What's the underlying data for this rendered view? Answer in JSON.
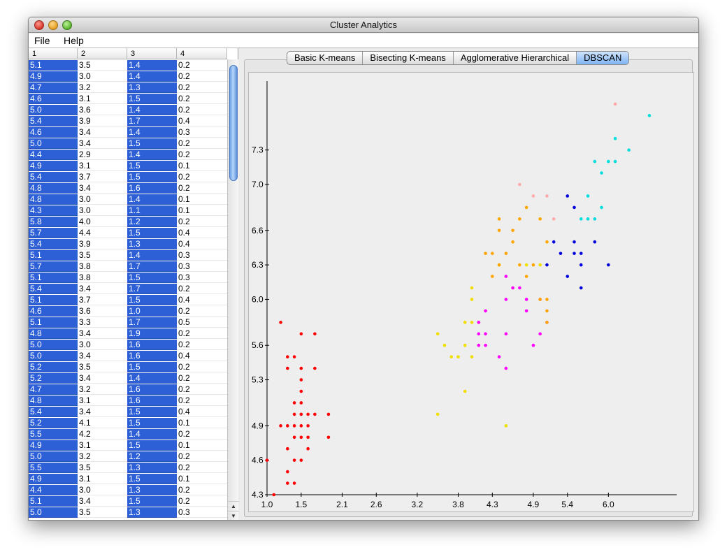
{
  "window": {
    "title": "Cluster Analytics"
  },
  "menu": [
    {
      "label": "File"
    },
    {
      "label": "Help"
    }
  ],
  "table": {
    "columns": [
      "1",
      "2",
      "3",
      "4"
    ],
    "rows": [
      [
        "5.1",
        "3.5",
        "1.4",
        "0.2"
      ],
      [
        "4.9",
        "3.0",
        "1.4",
        "0.2"
      ],
      [
        "4.7",
        "3.2",
        "1.3",
        "0.2"
      ],
      [
        "4.6",
        "3.1",
        "1.5",
        "0.2"
      ],
      [
        "5.0",
        "3.6",
        "1.4",
        "0.2"
      ],
      [
        "5.4",
        "3.9",
        "1.7",
        "0.4"
      ],
      [
        "4.6",
        "3.4",
        "1.4",
        "0.3"
      ],
      [
        "5.0",
        "3.4",
        "1.5",
        "0.2"
      ],
      [
        "4.4",
        "2.9",
        "1.4",
        "0.2"
      ],
      [
        "4.9",
        "3.1",
        "1.5",
        "0.1"
      ],
      [
        "5.4",
        "3.7",
        "1.5",
        "0.2"
      ],
      [
        "4.8",
        "3.4",
        "1.6",
        "0.2"
      ],
      [
        "4.8",
        "3.0",
        "1.4",
        "0.1"
      ],
      [
        "4.3",
        "3.0",
        "1.1",
        "0.1"
      ],
      [
        "5.8",
        "4.0",
        "1.2",
        "0.2"
      ],
      [
        "5.7",
        "4.4",
        "1.5",
        "0.4"
      ],
      [
        "5.4",
        "3.9",
        "1.3",
        "0.4"
      ],
      [
        "5.1",
        "3.5",
        "1.4",
        "0.3"
      ],
      [
        "5.7",
        "3.8",
        "1.7",
        "0.3"
      ],
      [
        "5.1",
        "3.8",
        "1.5",
        "0.3"
      ],
      [
        "5.4",
        "3.4",
        "1.7",
        "0.2"
      ],
      [
        "5.1",
        "3.7",
        "1.5",
        "0.4"
      ],
      [
        "4.6",
        "3.6",
        "1.0",
        "0.2"
      ],
      [
        "5.1",
        "3.3",
        "1.7",
        "0.5"
      ],
      [
        "4.8",
        "3.4",
        "1.9",
        "0.2"
      ],
      [
        "5.0",
        "3.0",
        "1.6",
        "0.2"
      ],
      [
        "5.0",
        "3.4",
        "1.6",
        "0.4"
      ],
      [
        "5.2",
        "3.5",
        "1.5",
        "0.2"
      ],
      [
        "5.2",
        "3.4",
        "1.4",
        "0.2"
      ],
      [
        "4.7",
        "3.2",
        "1.6",
        "0.2"
      ],
      [
        "4.8",
        "3.1",
        "1.6",
        "0.2"
      ],
      [
        "5.4",
        "3.4",
        "1.5",
        "0.4"
      ],
      [
        "5.2",
        "4.1",
        "1.5",
        "0.1"
      ],
      [
        "5.5",
        "4.2",
        "1.4",
        "0.2"
      ],
      [
        "4.9",
        "3.1",
        "1.5",
        "0.1"
      ],
      [
        "5.0",
        "3.2",
        "1.2",
        "0.2"
      ],
      [
        "5.5",
        "3.5",
        "1.3",
        "0.2"
      ],
      [
        "4.9",
        "3.1",
        "1.5",
        "0.1"
      ],
      [
        "4.4",
        "3.0",
        "1.3",
        "0.2"
      ],
      [
        "5.1",
        "3.4",
        "1.5",
        "0.2"
      ],
      [
        "5.0",
        "3.5",
        "1.3",
        "0.3"
      ]
    ],
    "selected_columns": [
      0,
      2
    ]
  },
  "tabs": [
    {
      "label": "Basic K-means",
      "active": false
    },
    {
      "label": "Bisecting K-means",
      "active": false
    },
    {
      "label": "Agglomerative Hierarchical",
      "active": false
    },
    {
      "label": "DBSCAN",
      "active": true
    }
  ],
  "scrollbar": {
    "up_arrow": "▲",
    "down_arrow": "▼"
  },
  "chart_data": {
    "type": "scatter",
    "xlim": [
      1.0,
      7.0
    ],
    "ylim": [
      4.3,
      7.9
    ],
    "x_ticks": [
      "1.0",
      "1.5",
      "2.1",
      "2.6",
      "3.2",
      "3.8",
      "4.3",
      "4.9",
      "5.4",
      "6.0"
    ],
    "y_ticks": [
      "4.3",
      "4.6",
      "4.9",
      "5.3",
      "5.6",
      "6.0",
      "6.3",
      "6.6",
      "7.0",
      "7.3"
    ],
    "grid": false,
    "series": [
      {
        "color": "#ff0000",
        "points": [
          [
            1.0,
            4.6
          ],
          [
            1.1,
            4.3
          ],
          [
            1.2,
            5.8
          ],
          [
            1.2,
            4.9
          ],
          [
            1.3,
            5.5
          ],
          [
            1.3,
            5.4
          ],
          [
            1.3,
            4.9
          ],
          [
            1.3,
            4.7
          ],
          [
            1.3,
            4.5
          ],
          [
            1.3,
            4.4
          ],
          [
            1.4,
            5.5
          ],
          [
            1.4,
            5.1
          ],
          [
            1.4,
            5.0
          ],
          [
            1.4,
            4.9
          ],
          [
            1.4,
            4.8
          ],
          [
            1.4,
            4.6
          ],
          [
            1.4,
            4.4
          ],
          [
            1.5,
            5.7
          ],
          [
            1.5,
            5.4
          ],
          [
            1.5,
            5.3
          ],
          [
            1.5,
            5.2
          ],
          [
            1.5,
            5.1
          ],
          [
            1.5,
            5.0
          ],
          [
            1.5,
            4.9
          ],
          [
            1.5,
            4.8
          ],
          [
            1.5,
            4.6
          ],
          [
            1.6,
            5.0
          ],
          [
            1.6,
            4.9
          ],
          [
            1.6,
            4.8
          ],
          [
            1.6,
            4.7
          ],
          [
            1.7,
            5.7
          ],
          [
            1.7,
            5.4
          ],
          [
            1.7,
            5.0
          ],
          [
            1.9,
            5.0
          ],
          [
            1.9,
            4.8
          ]
        ]
      },
      {
        "color": "#f0e000",
        "points": [
          [
            3.5,
            5.7
          ],
          [
            3.5,
            5.0
          ],
          [
            3.6,
            5.6
          ],
          [
            3.7,
            5.5
          ],
          [
            3.8,
            5.5
          ],
          [
            3.9,
            5.8
          ],
          [
            3.9,
            5.6
          ],
          [
            3.9,
            5.2
          ],
          [
            4.0,
            6.1
          ],
          [
            4.0,
            6.0
          ],
          [
            4.0,
            5.8
          ],
          [
            4.0,
            5.5
          ],
          [
            4.1,
            5.8
          ],
          [
            4.4,
            6.3
          ],
          [
            4.5,
            4.9
          ],
          [
            4.8,
            6.3
          ],
          [
            5.0,
            6.3
          ]
        ]
      },
      {
        "color": "#ff00ff",
        "points": [
          [
            4.1,
            5.8
          ],
          [
            4.1,
            5.7
          ],
          [
            4.1,
            5.6
          ],
          [
            4.2,
            5.9
          ],
          [
            4.2,
            5.7
          ],
          [
            4.2,
            5.6
          ],
          [
            4.4,
            5.5
          ],
          [
            4.5,
            6.2
          ],
          [
            4.5,
            6.0
          ],
          [
            4.5,
            5.7
          ],
          [
            4.5,
            5.4
          ],
          [
            4.6,
            6.1
          ],
          [
            4.7,
            6.1
          ],
          [
            4.8,
            6.0
          ],
          [
            4.8,
            5.9
          ],
          [
            4.9,
            5.6
          ],
          [
            5.0,
            6.0
          ],
          [
            5.0,
            5.7
          ],
          [
            5.1,
            5.8
          ]
        ]
      },
      {
        "color": "#ffa500",
        "points": [
          [
            4.3,
            6.4
          ],
          [
            4.4,
            6.7
          ],
          [
            4.4,
            6.6
          ],
          [
            4.5,
            6.4
          ],
          [
            4.6,
            6.6
          ],
          [
            4.6,
            6.5
          ],
          [
            4.7,
            6.7
          ],
          [
            4.7,
            6.3
          ],
          [
            4.8,
            6.8
          ],
          [
            4.8,
            6.2
          ],
          [
            4.9,
            6.3
          ],
          [
            5.0,
            6.7
          ],
          [
            5.1,
            6.5
          ],
          [
            5.1,
            6.0
          ],
          [
            5.1,
            5.9
          ],
          [
            5.1,
            5.8
          ],
          [
            5.0,
            6.0
          ],
          [
            4.3,
            6.2
          ],
          [
            4.4,
            6.3
          ],
          [
            4.2,
            6.4
          ]
        ]
      },
      {
        "color": "#ffaaaa",
        "points": [
          [
            4.7,
            7.0
          ],
          [
            4.9,
            6.9
          ],
          [
            5.1,
            6.9
          ],
          [
            5.2,
            6.7
          ],
          [
            6.1,
            7.7
          ]
        ]
      },
      {
        "color": "#0000dd",
        "points": [
          [
            5.1,
            6.3
          ],
          [
            5.2,
            6.5
          ],
          [
            5.3,
            6.4
          ],
          [
            5.4,
            6.9
          ],
          [
            5.4,
            6.2
          ],
          [
            5.5,
            6.8
          ],
          [
            5.5,
            6.5
          ],
          [
            5.5,
            6.4
          ],
          [
            5.6,
            6.4
          ],
          [
            5.6,
            6.3
          ],
          [
            5.6,
            6.1
          ],
          [
            5.8,
            6.5
          ],
          [
            6.0,
            6.3
          ]
        ]
      },
      {
        "color": "#00dddd",
        "points": [
          [
            5.6,
            6.7
          ],
          [
            5.7,
            6.9
          ],
          [
            5.7,
            6.7
          ],
          [
            5.8,
            7.2
          ],
          [
            5.8,
            6.7
          ],
          [
            5.9,
            6.8
          ],
          [
            5.9,
            7.1
          ],
          [
            6.0,
            7.2
          ],
          [
            6.1,
            7.2
          ],
          [
            6.1,
            7.4
          ],
          [
            6.3,
            7.3
          ],
          [
            6.6,
            7.6
          ]
        ]
      }
    ]
  }
}
